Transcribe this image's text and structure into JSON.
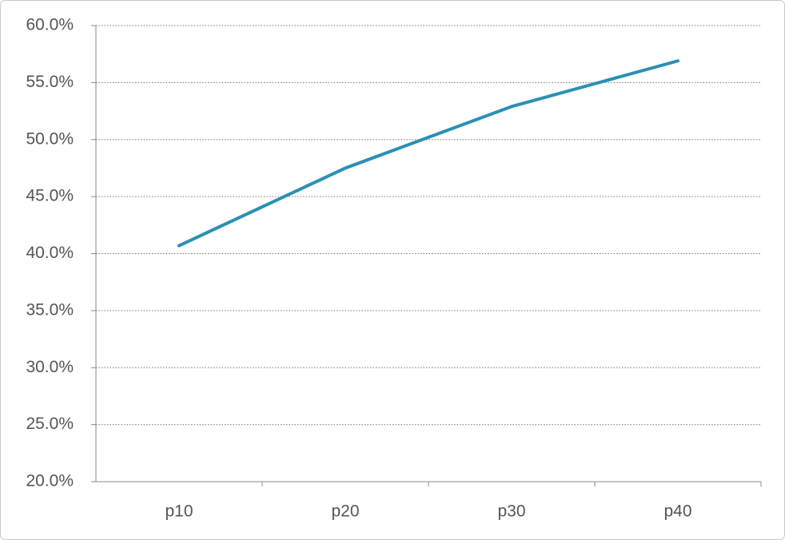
{
  "chart_data": {
    "type": "line",
    "categories": [
      "p10",
      "p20",
      "p30",
      "p40"
    ],
    "series": [
      {
        "color": "#2b90b4",
        "values": [
          40.7,
          47.5,
          52.9,
          56.9
        ]
      }
    ],
    "ylim": [
      20,
      60
    ],
    "yticks": [
      {
        "value": 20,
        "label": "20.0%"
      },
      {
        "value": 25,
        "label": "25.0%"
      },
      {
        "value": 30,
        "label": "30.0%"
      },
      {
        "value": 35,
        "label": "35.0%"
      },
      {
        "value": 40,
        "label": "40.0%"
      },
      {
        "value": 45,
        "label": "45.0%"
      },
      {
        "value": 50,
        "label": "50.0%"
      },
      {
        "value": 55,
        "label": "55.0%"
      },
      {
        "value": 60,
        "label": "60.0%"
      }
    ],
    "grid": true
  }
}
